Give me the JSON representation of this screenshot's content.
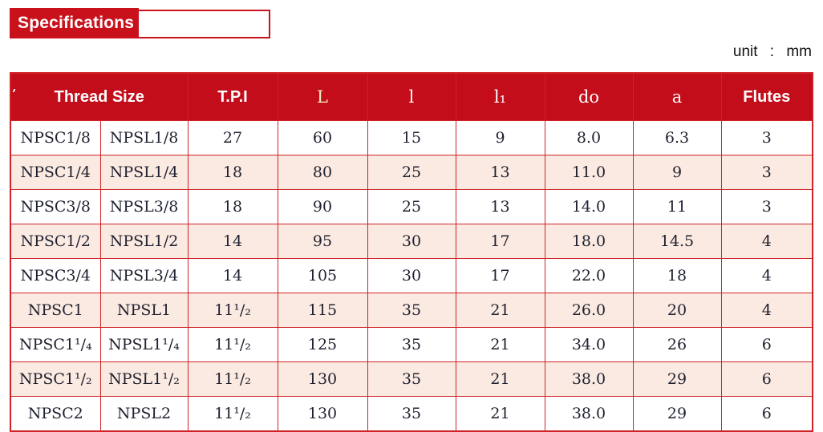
{
  "page": {
    "title": "Specifications",
    "unit_label": "unit : mm"
  },
  "colors": {
    "header_red": "#c30d1a",
    "title_red": "#c9111c",
    "border_red": "#cf2227",
    "row_alt_pink": "#fbeae1",
    "accent_header_yellow": "#f6efbf",
    "cell_text": "#1f2130"
  },
  "table": {
    "headers": {
      "thread_size": "Thread Size",
      "tpi": "T.P.I",
      "L": "L",
      "l": "l",
      "l1": "l₁",
      "d0": "do",
      "a": "a",
      "flutes": "Flutes"
    },
    "rows": [
      [
        "NPSC1/8",
        "NPSL1/8",
        "27",
        "60",
        "15",
        "9",
        "8.0",
        "6.3",
        "3"
      ],
      [
        "NPSC1/4",
        "NPSL1/4",
        "18",
        "80",
        "25",
        "13",
        "11.0",
        "9",
        "3"
      ],
      [
        "NPSC3/8",
        "NPSL3/8",
        "18",
        "90",
        "25",
        "13",
        "14.0",
        "11",
        "3"
      ],
      [
        "NPSC1/2",
        "NPSL1/2",
        "14",
        "95",
        "30",
        "17",
        "18.0",
        "14.5",
        "4"
      ],
      [
        "NPSC3/4",
        "NPSL3/4",
        "14",
        "105",
        "30",
        "17",
        "22.0",
        "18",
        "4"
      ],
      [
        "NPSC1",
        "NPSL1",
        "11¹/₂",
        "115",
        "35",
        "21",
        "26.0",
        "20",
        "4"
      ],
      [
        "NPSC1¹/₄",
        "NPSL1¹/₄",
        "11¹/₂",
        "125",
        "35",
        "21",
        "34.0",
        "26",
        "6"
      ],
      [
        "NPSC1¹/₂",
        "NPSL1¹/₂",
        "11¹/₂",
        "130",
        "35",
        "21",
        "38.0",
        "29",
        "6"
      ],
      [
        "NPSC2",
        "NPSL2",
        "11¹/₂",
        "130",
        "35",
        "21",
        "38.0",
        "29",
        "6"
      ]
    ]
  }
}
